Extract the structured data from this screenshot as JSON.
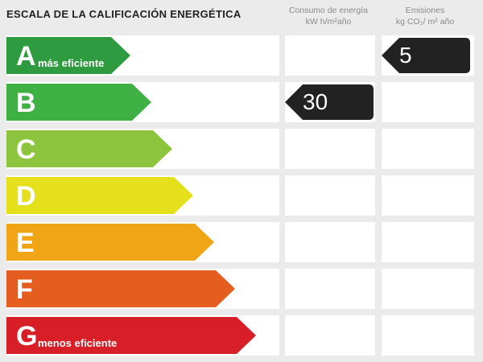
{
  "header": {
    "title": "ESCALA DE LA CALIFICACIÓN ENERGÉTICA",
    "col_energy_line1": "Consumo de energía",
    "col_energy_line2": "kW h/m²año",
    "col_emissions_line1": "Emisiones",
    "col_emissions_line2": "kg CO₂/ m² año"
  },
  "rows": [
    {
      "letter": "A",
      "sub": "más eficiente",
      "color": "#2e9b40"
    },
    {
      "letter": "B",
      "sub": "",
      "color": "#3fb044"
    },
    {
      "letter": "C",
      "sub": "",
      "color": "#8cc43d"
    },
    {
      "letter": "D",
      "sub": "",
      "color": "#e5e01c"
    },
    {
      "letter": "E",
      "sub": "",
      "color": "#f0a516"
    },
    {
      "letter": "F",
      "sub": "",
      "color": "#e55e20"
    },
    {
      "letter": "G",
      "sub": "menos eficiente",
      "color": "#d81e26"
    }
  ],
  "energy": {
    "value": "30",
    "row": "B",
    "color": "#222222"
  },
  "emissions": {
    "value": "5",
    "row": "A",
    "color": "#222222"
  }
}
